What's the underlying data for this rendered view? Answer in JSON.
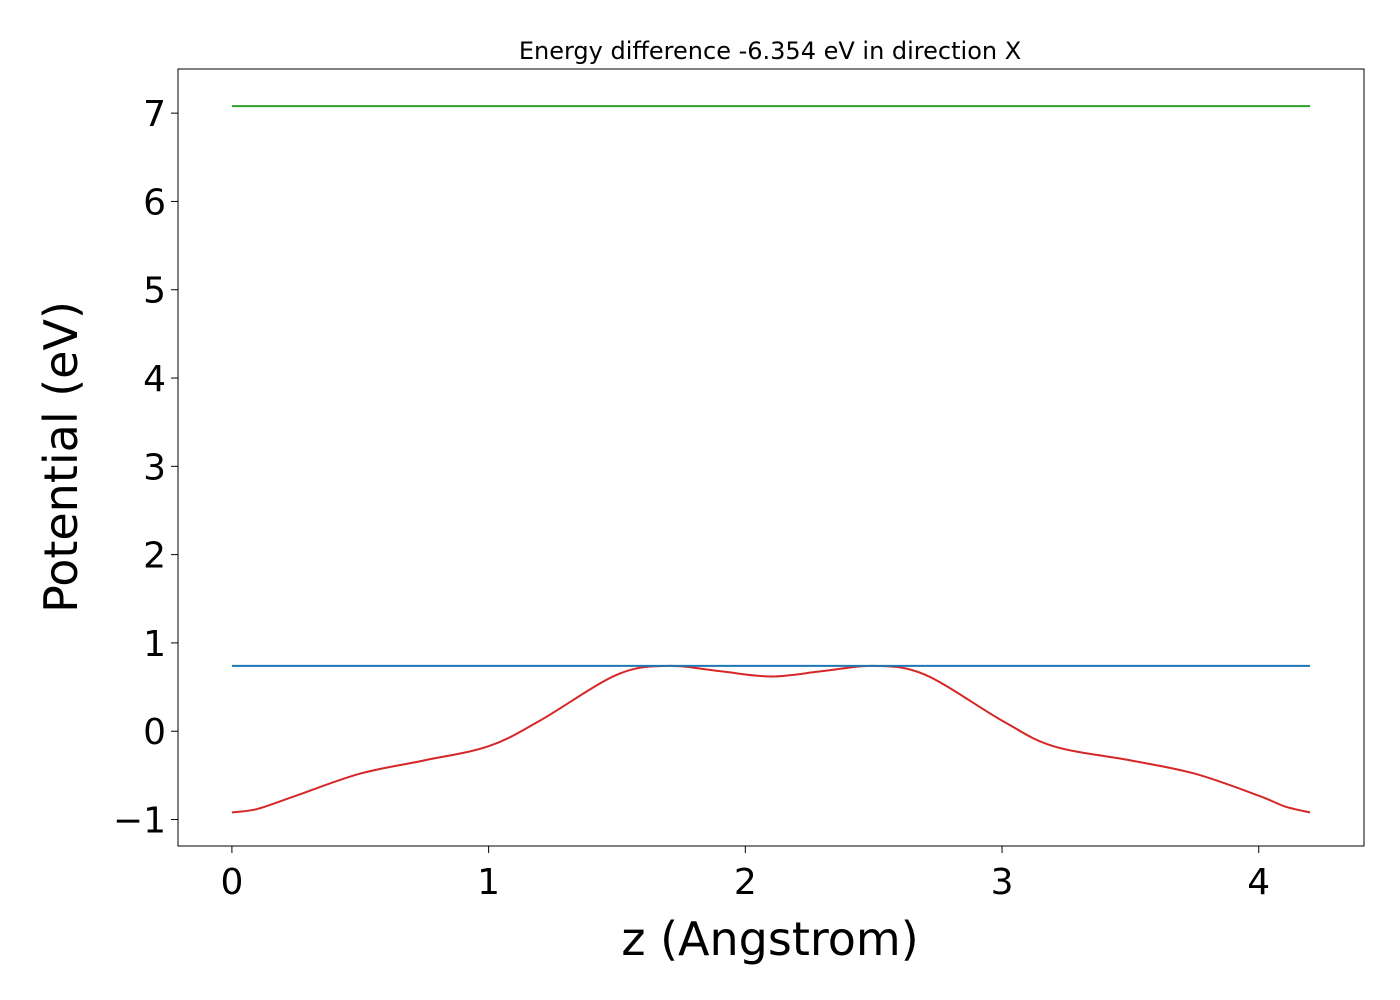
{
  "chart_data": {
    "type": "line",
    "title": "Energy difference -6.354 eV in direction X",
    "xlabel": "z (Angstrom)",
    "ylabel": "Potential (eV)",
    "xlim": [
      -0.21,
      4.41
    ],
    "ylim": [
      -1.3,
      7.5
    ],
    "xticks": [
      0,
      1,
      2,
      3,
      4
    ],
    "xtick_labels": [
      "0",
      "1",
      "2",
      "3",
      "4"
    ],
    "yticks": [
      -1,
      0,
      1,
      2,
      3,
      4,
      5,
      6,
      7
    ],
    "ytick_labels": [
      "−1",
      "0",
      "1",
      "2",
      "3",
      "4",
      "5",
      "6",
      "7"
    ],
    "grid": false,
    "legend": "none",
    "series": [
      {
        "color": "#d62728",
        "x": [
          0,
          0.1,
          0.25,
          0.5,
          0.75,
          1.0,
          1.2,
          1.5,
          1.7,
          1.9,
          2.1,
          2.3,
          2.5,
          2.7,
          3.0,
          3.2,
          3.5,
          3.75,
          4.0,
          4.1,
          4.2
        ],
        "y": [
          -0.92,
          -0.88,
          -0.73,
          -0.48,
          -0.33,
          -0.17,
          0.12,
          0.64,
          0.74,
          0.68,
          0.62,
          0.68,
          0.74,
          0.64,
          0.12,
          -0.17,
          -0.33,
          -0.48,
          -0.73,
          -0.85,
          -0.92
        ]
      },
      {
        "color": "#1f77b4",
        "x": [
          0,
          4.2
        ],
        "y": [
          0.74,
          0.74
        ]
      },
      {
        "color": "#2ca02c",
        "x": [
          0,
          4.2
        ],
        "y": [
          7.08,
          7.08
        ]
      }
    ]
  }
}
